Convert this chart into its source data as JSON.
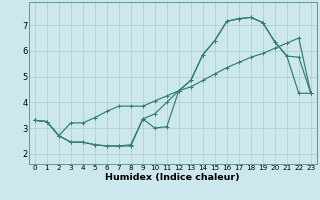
{
  "xlabel": "Humidex (Indice chaleur)",
  "bg_color": "#cde8ec",
  "grid_color": "#aacdd4",
  "line_color": "#2e7d72",
  "xlim": [
    -0.5,
    23.5
  ],
  "ylim": [
    1.6,
    7.9
  ],
  "xticks": [
    0,
    1,
    2,
    3,
    4,
    5,
    6,
    7,
    8,
    9,
    10,
    11,
    12,
    13,
    14,
    15,
    16,
    17,
    18,
    19,
    20,
    21,
    22,
    23
  ],
  "yticks": [
    2,
    3,
    4,
    5,
    6,
    7
  ],
  "line1_x": [
    0,
    1,
    2,
    3,
    4,
    5,
    6,
    7,
    8,
    9,
    10,
    11,
    12,
    13,
    14,
    15,
    16,
    17,
    18,
    19,
    20,
    21,
    22,
    23
  ],
  "line1_y": [
    3.3,
    3.25,
    2.7,
    2.45,
    2.45,
    2.35,
    2.3,
    2.3,
    2.3,
    3.35,
    3.0,
    3.05,
    4.45,
    4.85,
    5.85,
    6.4,
    7.15,
    7.25,
    7.3,
    7.1,
    6.35,
    5.8,
    4.35,
    4.35
  ],
  "line2_x": [
    0,
    1,
    2,
    3,
    4,
    5,
    6,
    7,
    8,
    9,
    10,
    11,
    12,
    13,
    14,
    15,
    16,
    17,
    18,
    19,
    20,
    21,
    22,
    23
  ],
  "line2_y": [
    3.3,
    3.25,
    2.7,
    2.45,
    2.45,
    2.35,
    2.3,
    2.3,
    2.35,
    3.35,
    3.55,
    4.0,
    4.45,
    4.85,
    5.85,
    6.4,
    7.15,
    7.25,
    7.3,
    7.1,
    6.35,
    5.8,
    5.75,
    4.35
  ],
  "line3_x": [
    0,
    1,
    2,
    3,
    4,
    5,
    6,
    7,
    8,
    9,
    10,
    11,
    12,
    13,
    14,
    15,
    16,
    17,
    18,
    19,
    20,
    21,
    22,
    23
  ],
  "line3_y": [
    3.3,
    3.25,
    2.7,
    3.2,
    3.2,
    3.4,
    3.65,
    3.85,
    3.85,
    3.85,
    4.05,
    4.25,
    4.45,
    4.6,
    4.85,
    5.1,
    5.35,
    5.55,
    5.75,
    5.9,
    6.1,
    6.3,
    6.5,
    4.35
  ],
  "tick_fontsize_x": 5.2,
  "tick_fontsize_y": 6.0,
  "xlabel_fontsize": 6.8,
  "linewidth": 0.85,
  "markersize": 3.0,
  "markeredgewidth": 0.7
}
